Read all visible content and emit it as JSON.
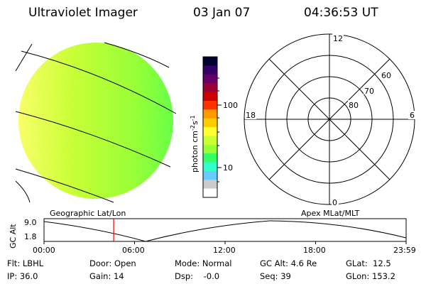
{
  "header": {
    "instrument": "Ultraviolet Imager",
    "date": "03 Jan 07",
    "time": "04:36:53 UT"
  },
  "colorbar": {
    "unit_prefix": "photon cm",
    "unit_exp1": "-2",
    "unit_mid": "s",
    "unit_exp2": "-1",
    "tick_100": "100",
    "tick_10": "10",
    "colors": [
      "#000033",
      "#330066",
      "#660066",
      "#990033",
      "#cc0000",
      "#ff3300",
      "#ff9900",
      "#ffcc00",
      "#ffff33",
      "#ccff33",
      "#99ff33",
      "#33ff66",
      "#33ffcc",
      "#66ccff",
      "#cccccc",
      "#ffffff"
    ]
  },
  "image": {
    "fill_dark": "#33ff33",
    "fill_mid": "#99ff33",
    "fill_light": "#ffff66"
  },
  "polar": {
    "mlt_top": "12",
    "mlt_left": "18",
    "mlt_right": "6",
    "mlt_bottom": "0",
    "lat_60": "60",
    "lat_70": "70",
    "lat_80": "80"
  },
  "timeline": {
    "left_label": "Geographic Lat/Lon",
    "right_label": "Apex MLat/MLT",
    "axis_title": "GC Alt",
    "y_max": "9.0",
    "y_min": "1.8",
    "ticks": [
      "00:00",
      "06:00",
      "12:00",
      "18:00",
      "23:59"
    ],
    "marker_time_hours": 4.615,
    "marker_color": "#ff0000"
  },
  "footer": {
    "filter": "Flt: LBHL",
    "door": "Door: Open",
    "mode": "Mode: Normal",
    "gc_alt": "GC Alt: 4.6 Re",
    "glat": "GLat:  12.5",
    "ip": "IP: 36.0",
    "gain": "Gain: 14",
    "dsp": "Dsp:    -0.0",
    "seq": "Seq: 39",
    "glon": "GLon: 153.2"
  }
}
